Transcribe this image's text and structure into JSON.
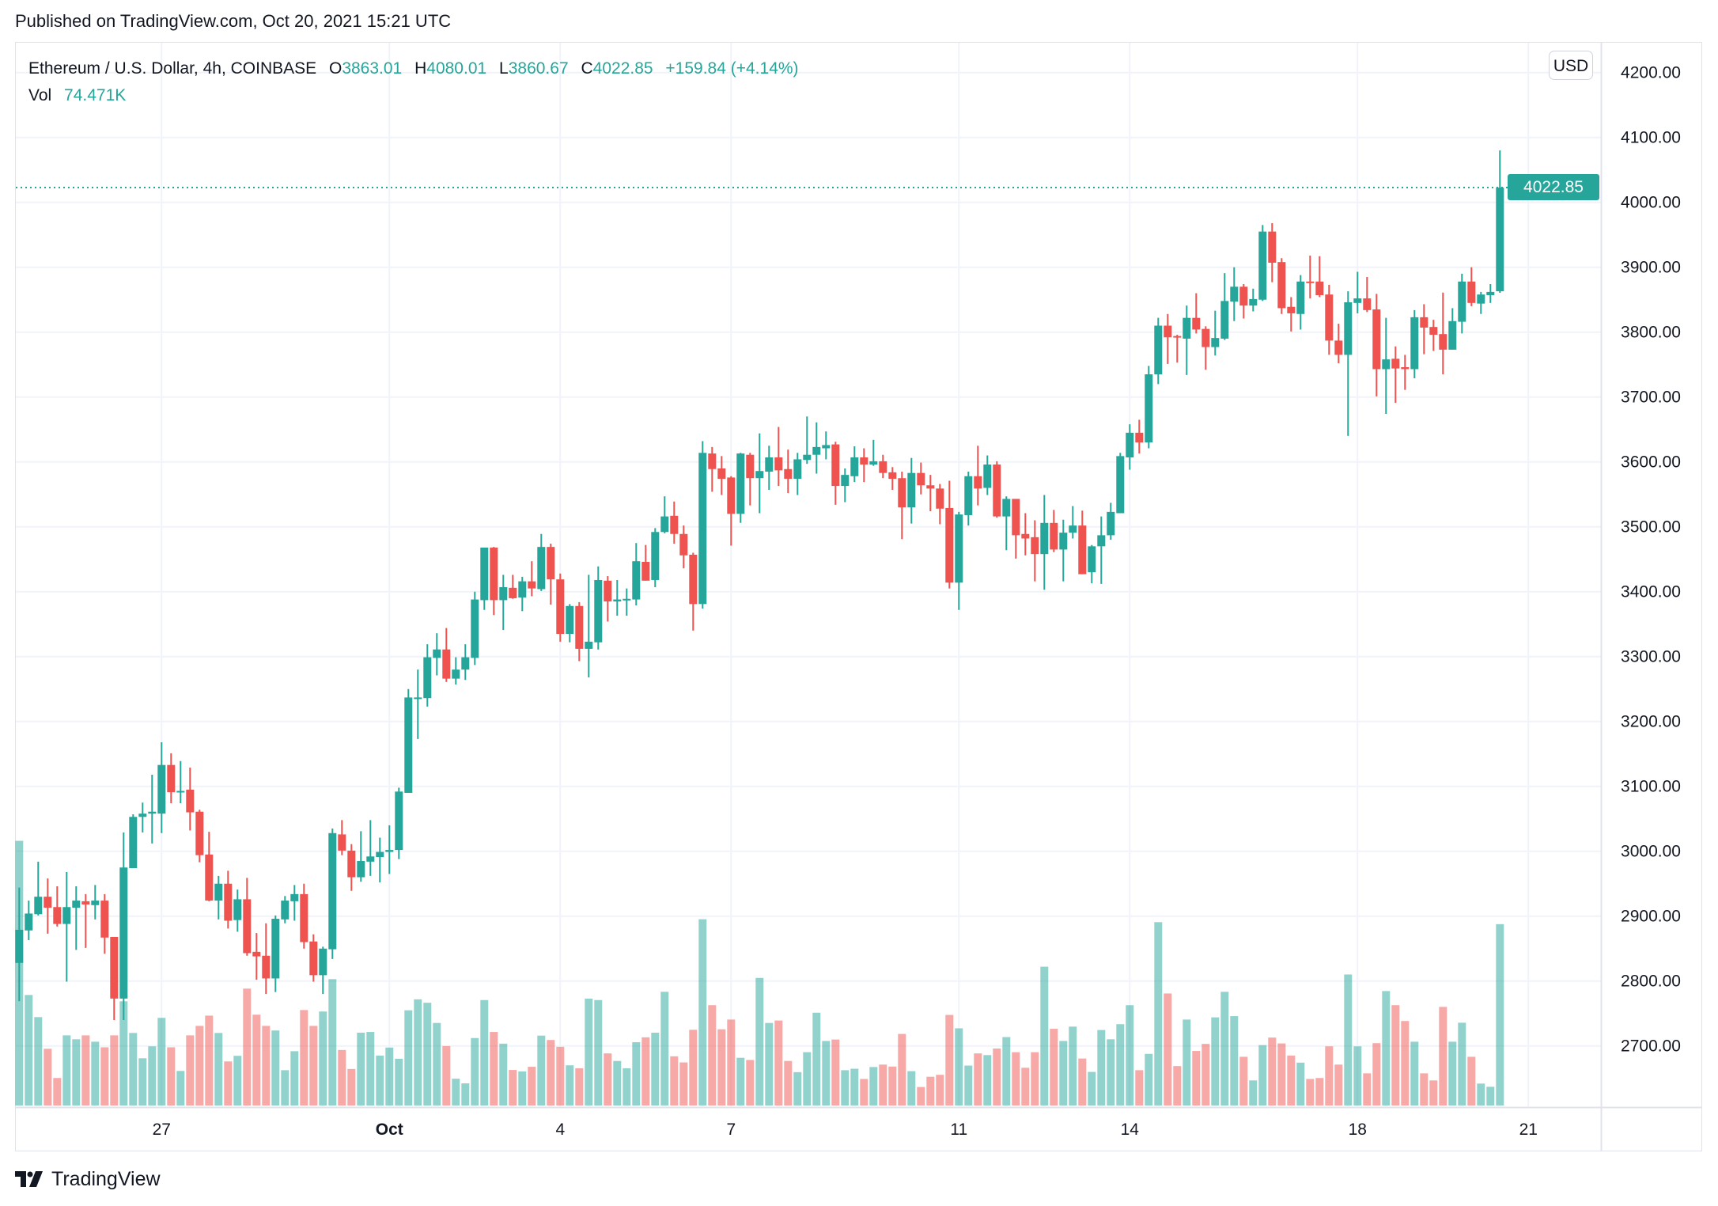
{
  "header": {
    "published": "Published on TradingView.com, Oct 20, 2021 15:21 UTC"
  },
  "legend": {
    "symbol": "Ethereum / U.S. Dollar, 4h, COINBASE",
    "o_label": "O",
    "o": "3863.01",
    "h_label": "H",
    "h": "4080.01",
    "l_label": "L",
    "l": "3860.67",
    "c_label": "C",
    "c": "4022.85",
    "change": "+159.84 (+4.14%)",
    "vol_label": "Vol",
    "vol": "74.471K"
  },
  "price_axis": {
    "currency": "USD",
    "last_price": "4022.85"
  },
  "footer": {
    "brand": "TradingView",
    "logo_icon": "tradingview-logo-icon"
  },
  "colors": {
    "up": "#26a69a",
    "down": "#ef5350",
    "grid": "#f0f3fa",
    "border": "#e0e3eb",
    "text": "#131722"
  },
  "chart_data": {
    "type": "candlestick",
    "columns": [
      "open",
      "high",
      "low",
      "close",
      "volume_k"
    ],
    "ylim": [
      2607,
      4246
    ],
    "grid": true,
    "y_ticks": [
      "2700.00",
      "2800.00",
      "2900.00",
      "3000.00",
      "3100.00",
      "3200.00",
      "3300.00",
      "3400.00",
      "3500.00",
      "3600.00",
      "3700.00",
      "3800.00",
      "3900.00",
      "4000.00",
      "4100.00",
      "4200.00"
    ],
    "x_ticks": [
      "27",
      "Oct",
      "4",
      "7",
      "11",
      "14",
      "18",
      "21"
    ],
    "candles": [
      [
        2828,
        2944,
        2769,
        2879,
        108.7
      ],
      [
        2878,
        2924,
        2863,
        2904,
        45.4
      ],
      [
        2903,
        2984,
        2901,
        2930,
        36.3
      ],
      [
        2930,
        2958,
        2873,
        2913,
        23.3
      ],
      [
        2914,
        2946,
        2884,
        2888,
        11.3
      ],
      [
        2888,
        2968,
        2799,
        2914,
        28.8
      ],
      [
        2913,
        2946,
        2848,
        2924,
        27.2
      ],
      [
        2923,
        2934,
        2851,
        2918,
        28.8
      ],
      [
        2917,
        2948,
        2895,
        2924,
        26.2
      ],
      [
        2924,
        2934,
        2842,
        2867,
        23.9
      ],
      [
        2868,
        2868,
        2740,
        2773,
        28.8
      ],
      [
        2773,
        3029,
        2740,
        2975,
        42.8
      ],
      [
        2974,
        3057,
        2974,
        3053,
        29.8
      ],
      [
        3053,
        3075,
        3029,
        3058,
        19.4
      ],
      [
        3058,
        3118,
        3012,
        3061,
        24.3
      ],
      [
        3058,
        3168,
        3028,
        3133,
        36.0
      ],
      [
        3133,
        3151,
        3074,
        3091,
        23.9
      ],
      [
        3092,
        3139,
        3074,
        3093,
        14.2
      ],
      [
        3095,
        3129,
        3032,
        3060,
        28.8
      ],
      [
        3061,
        3064,
        2983,
        2994,
        32.7
      ],
      [
        2995,
        3030,
        2923,
        2924,
        36.9
      ],
      [
        2924,
        2962,
        2895,
        2950,
        29.8
      ],
      [
        2950,
        2970,
        2881,
        2893,
        18.1
      ],
      [
        2894,
        2941,
        2876,
        2926,
        20.4
      ],
      [
        2926,
        2959,
        2839,
        2843,
        48.0
      ],
      [
        2845,
        2874,
        2802,
        2838,
        37.3
      ],
      [
        2839,
        2889,
        2780,
        2804,
        32.7
      ],
      [
        2804,
        2901,
        2783,
        2896,
        30.8
      ],
      [
        2895,
        2931,
        2889,
        2924,
        14.5
      ],
      [
        2923,
        2948,
        2893,
        2934,
        22.3
      ],
      [
        2934,
        2950,
        2850,
        2860,
        39.2
      ],
      [
        2861,
        2872,
        2799,
        2809,
        32.7
      ],
      [
        2809,
        2853,
        2780,
        2850,
        38.6
      ],
      [
        2849,
        3035,
        2834,
        3028,
        51.9
      ],
      [
        3026,
        3048,
        2994,
        3001,
        22.8
      ],
      [
        3001,
        3011,
        2939,
        2960,
        15.0
      ],
      [
        2960,
        3031,
        2953,
        2985,
        29.9
      ],
      [
        2984,
        3048,
        2962,
        2992,
        30.2
      ],
      [
        2991,
        3021,
        2952,
        2999,
        20.5
      ],
      [
        2999,
        3040,
        2965,
        3002,
        23.8
      ],
      [
        3002,
        3098,
        2988,
        3092,
        19.2
      ],
      [
        3090,
        3250,
        3090,
        3237,
        39.1
      ],
      [
        3235,
        3280,
        3173,
        3237,
        43.6
      ],
      [
        3236,
        3319,
        3223,
        3299,
        42.2
      ],
      [
        3298,
        3336,
        3271,
        3311,
        33.9
      ],
      [
        3311,
        3344,
        3261,
        3266,
        24.4
      ],
      [
        3266,
        3299,
        3257,
        3280,
        11.0
      ],
      [
        3280,
        3319,
        3264,
        3299,
        9.1
      ],
      [
        3298,
        3400,
        3287,
        3388,
        27.7
      ],
      [
        3387,
        3468,
        3372,
        3468,
        43.3
      ],
      [
        3468,
        3469,
        3364,
        3387,
        30.2
      ],
      [
        3387,
        3426,
        3341,
        3407,
        25.4
      ],
      [
        3406,
        3426,
        3389,
        3390,
        14.6
      ],
      [
        3391,
        3423,
        3370,
        3416,
        14.0
      ],
      [
        3416,
        3447,
        3393,
        3405,
        15.9
      ],
      [
        3404,
        3489,
        3401,
        3469,
        28.7
      ],
      [
        3469,
        3474,
        3380,
        3419,
        26.9
      ],
      [
        3419,
        3428,
        3323,
        3335,
        24.1
      ],
      [
        3335,
        3381,
        3322,
        3378,
        16.5
      ],
      [
        3378,
        3384,
        3293,
        3312,
        15.3
      ],
      [
        3312,
        3426,
        3268,
        3323,
        43.9
      ],
      [
        3322,
        3439,
        3311,
        3418,
        43.3
      ],
      [
        3417,
        3424,
        3354,
        3385,
        21.4
      ],
      [
        3385,
        3418,
        3363,
        3388,
        18.3
      ],
      [
        3387,
        3405,
        3363,
        3389,
        15.3
      ],
      [
        3388,
        3475,
        3379,
        3447,
        26.0
      ],
      [
        3446,
        3472,
        3417,
        3417,
        28.0
      ],
      [
        3418,
        3498,
        3407,
        3492,
        29.9
      ],
      [
        3492,
        3547,
        3490,
        3516,
        46.7
      ],
      [
        3517,
        3539,
        3474,
        3489,
        20.2
      ],
      [
        3489,
        3502,
        3436,
        3456,
        17.7
      ],
      [
        3457,
        3460,
        3340,
        3381,
        31.1
      ],
      [
        3381,
        3632,
        3374,
        3614,
        76.5
      ],
      [
        3613,
        3623,
        3554,
        3589,
        41.2
      ],
      [
        3590,
        3609,
        3549,
        3574,
        31.3
      ],
      [
        3576,
        3578,
        3471,
        3520,
        35.3
      ],
      [
        3520,
        3614,
        3506,
        3613,
        19.6
      ],
      [
        3611,
        3614,
        3533,
        3575,
        18.7
      ],
      [
        3575,
        3644,
        3521,
        3586,
        52.4
      ],
      [
        3585,
        3625,
        3557,
        3607,
        33.9
      ],
      [
        3607,
        3654,
        3563,
        3587,
        34.9
      ],
      [
        3589,
        3619,
        3552,
        3574,
        18.3
      ],
      [
        3574,
        3614,
        3549,
        3604,
        13.7
      ],
      [
        3603,
        3670,
        3597,
        3611,
        21.9
      ],
      [
        3611,
        3661,
        3582,
        3623,
        38.1
      ],
      [
        3621,
        3647,
        3604,
        3626,
        26.5
      ],
      [
        3627,
        3631,
        3534,
        3563,
        27.1
      ],
      [
        3563,
        3590,
        3538,
        3580,
        14.5
      ],
      [
        3578,
        3624,
        3569,
        3607,
        15.1
      ],
      [
        3607,
        3621,
        3569,
        3596,
        10.9
      ],
      [
        3596,
        3634,
        3594,
        3601,
        15.8
      ],
      [
        3601,
        3611,
        3575,
        3583,
        16.8
      ],
      [
        3584,
        3592,
        3557,
        3574,
        16.0
      ],
      [
        3575,
        3585,
        3481,
        3530,
        29.4
      ],
      [
        3530,
        3606,
        3505,
        3583,
        14.1
      ],
      [
        3583,
        3599,
        3550,
        3564,
        7.6
      ],
      [
        3564,
        3580,
        3524,
        3559,
        11.8
      ],
      [
        3559,
        3566,
        3504,
        3528,
        12.6
      ],
      [
        3529,
        3571,
        3405,
        3414,
        37.2
      ],
      [
        3414,
        3523,
        3372,
        3519,
        31.7
      ],
      [
        3518,
        3585,
        3502,
        3578,
        16.4
      ],
      [
        3578,
        3625,
        3533,
        3559,
        21.4
      ],
      [
        3560,
        3610,
        3549,
        3596,
        20.7
      ],
      [
        3596,
        3601,
        3514,
        3516,
        23.4
      ],
      [
        3516,
        3547,
        3464,
        3543,
        28.1
      ],
      [
        3543,
        3543,
        3451,
        3487,
        21.9
      ],
      [
        3489,
        3521,
        3456,
        3482,
        15.5
      ],
      [
        3484,
        3510,
        3416,
        3458,
        21.9
      ],
      [
        3458,
        3549,
        3403,
        3506,
        57.0
      ],
      [
        3506,
        3526,
        3461,
        3465,
        31.5
      ],
      [
        3465,
        3511,
        3416,
        3491,
        26.5
      ],
      [
        3491,
        3532,
        3482,
        3502,
        32.4
      ],
      [
        3502,
        3525,
        3427,
        3427,
        19.3
      ],
      [
        3430,
        3472,
        3413,
        3470,
        13.8
      ],
      [
        3470,
        3516,
        3412,
        3487,
        31.0
      ],
      [
        3487,
        3537,
        3480,
        3523,
        27.2
      ],
      [
        3521,
        3614,
        3521,
        3609,
        33.4
      ],
      [
        3607,
        3658,
        3588,
        3645,
        41.2
      ],
      [
        3645,
        3665,
        3613,
        3630,
        14.5
      ],
      [
        3630,
        3748,
        3621,
        3735,
        21.2
      ],
      [
        3735,
        3822,
        3720,
        3810,
        75.3
      ],
      [
        3810,
        3828,
        3751,
        3792,
        46.0
      ],
      [
        3794,
        3796,
        3753,
        3792,
        16.2
      ],
      [
        3790,
        3841,
        3734,
        3822,
        35.3
      ],
      [
        3822,
        3860,
        3798,
        3804,
        22.4
      ],
      [
        3805,
        3809,
        3742,
        3777,
        25.3
      ],
      [
        3777,
        3833,
        3764,
        3791,
        36.2
      ],
      [
        3790,
        3891,
        3788,
        3848,
        46.7
      ],
      [
        3847,
        3900,
        3817,
        3870,
        36.7
      ],
      [
        3870,
        3874,
        3821,
        3841,
        20.0
      ],
      [
        3841,
        3867,
        3832,
        3851,
        10.3
      ],
      [
        3850,
        3965,
        3848,
        3955,
        24.8
      ],
      [
        3955,
        3968,
        3877,
        3907,
        27.9
      ],
      [
        3908,
        3914,
        3828,
        3837,
        25.5
      ],
      [
        3839,
        3854,
        3801,
        3829,
        20.5
      ],
      [
        3828,
        3888,
        3804,
        3878,
        17.6
      ],
      [
        3878,
        3918,
        3852,
        3876,
        10.9
      ],
      [
        3878,
        3917,
        3854,
        3857,
        11.3
      ],
      [
        3858,
        3873,
        3765,
        3787,
        24.3
      ],
      [
        3787,
        3813,
        3752,
        3765,
        16.8
      ],
      [
        3765,
        3863,
        3640,
        3846,
        53.8
      ],
      [
        3845,
        3893,
        3829,
        3852,
        24.3
      ],
      [
        3852,
        3885,
        3831,
        3834,
        13.2
      ],
      [
        3835,
        3859,
        3701,
        3743,
        25.6
      ],
      [
        3743,
        3822,
        3674,
        3758,
        47.0
      ],
      [
        3759,
        3778,
        3691,
        3744,
        41.2
      ],
      [
        3746,
        3765,
        3711,
        3743,
        34.7
      ],
      [
        3743,
        3834,
        3729,
        3823,
        26.2
      ],
      [
        3823,
        3843,
        3766,
        3807,
        13.2
      ],
      [
        3808,
        3819,
        3771,
        3796,
        10.3
      ],
      [
        3797,
        3861,
        3735,
        3773,
        40.5
      ],
      [
        3773,
        3837,
        3773,
        3817,
        26.2
      ],
      [
        3816,
        3890,
        3798,
        3878,
        34.0
      ],
      [
        3878,
        3900,
        3840,
        3845,
        20.0
      ],
      [
        3844,
        3862,
        3828,
        3858,
        9.0
      ],
      [
        3857,
        3874,
        3845,
        3862,
        7.7
      ],
      [
        3863.01,
        4080.01,
        3860.67,
        4022.85,
        74.471
      ]
    ]
  }
}
